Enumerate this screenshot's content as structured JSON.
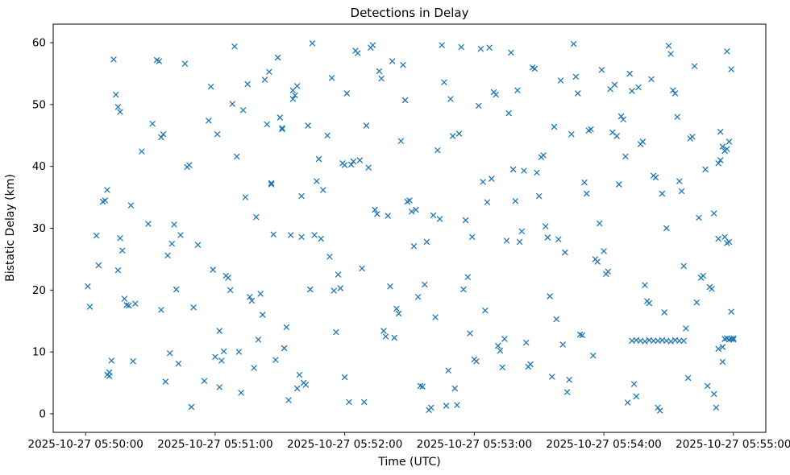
{
  "chart_data": {
    "type": "scatter",
    "title": "Detections in Delay",
    "xlabel": "Time (UTC)",
    "ylabel": "Bistatic Delay (km)",
    "marker": "x",
    "marker_color": "#1f77b4",
    "grid": false,
    "legend_position": "none",
    "xlim_seconds": [
      -15,
      315
    ],
    "ylim": [
      -3,
      63
    ],
    "x_ticks": [
      {
        "seconds": 0,
        "label": "2025-10-27 05:50:00"
      },
      {
        "seconds": 60,
        "label": "2025-10-27 05:51:00"
      },
      {
        "seconds": 120,
        "label": "2025-10-27 05:52:00"
      },
      {
        "seconds": 180,
        "label": "2025-10-27 05:53:00"
      },
      {
        "seconds": 240,
        "label": "2025-10-27 05:54:00"
      },
      {
        "seconds": 300,
        "label": "2025-10-27 05:55:00"
      }
    ],
    "y_ticks": [
      0,
      10,
      20,
      30,
      40,
      50,
      60
    ],
    "points_format": [
      "seconds_after_05:50:00_utc",
      "bistatic_delay_km"
    ],
    "points": [
      [
        1,
        20.6
      ],
      [
        2,
        17.3
      ],
      [
        5,
        28.8
      ],
      [
        6,
        24.0
      ],
      [
        8,
        34.3
      ],
      [
        9,
        34.5
      ],
      [
        10,
        36.2
      ],
      [
        10,
        6.3
      ],
      [
        11,
        6.7
      ],
      [
        11,
        6.1
      ],
      [
        12,
        8.6
      ],
      [
        13,
        57.3
      ],
      [
        14,
        51.6
      ],
      [
        15,
        49.6
      ],
      [
        16,
        48.8
      ],
      [
        15,
        23.2
      ],
      [
        16,
        28.4
      ],
      [
        17,
        26.4
      ],
      [
        18,
        18.6
      ],
      [
        19,
        17.6
      ],
      [
        20,
        17.5
      ],
      [
        21,
        33.7
      ],
      [
        22,
        8.5
      ],
      [
        23,
        17.8
      ],
      [
        26,
        42.4
      ],
      [
        29,
        30.7
      ],
      [
        31,
        46.9
      ],
      [
        33,
        57.2
      ],
      [
        34,
        57.0
      ],
      [
        35,
        44.7
      ],
      [
        36,
        45.2
      ],
      [
        35,
        16.8
      ],
      [
        37,
        5.2
      ],
      [
        38,
        25.6
      ],
      [
        39,
        9.8
      ],
      [
        40,
        27.5
      ],
      [
        41,
        30.6
      ],
      [
        42,
        20.1
      ],
      [
        43,
        8.1
      ],
      [
        44,
        28.9
      ],
      [
        46,
        56.6
      ],
      [
        47,
        39.9
      ],
      [
        48,
        40.2
      ],
      [
        49,
        1.1
      ],
      [
        50,
        17.2
      ],
      [
        52,
        27.3
      ],
      [
        55,
        5.3
      ],
      [
        57,
        47.4
      ],
      [
        58,
        52.9
      ],
      [
        59,
        23.3
      ],
      [
        60,
        9.2
      ],
      [
        61,
        45.2
      ],
      [
        62,
        13.4
      ],
      [
        62,
        4.3
      ],
      [
        63,
        8.6
      ],
      [
        64,
        10.1
      ],
      [
        65,
        22.3
      ],
      [
        66,
        22.0
      ],
      [
        67,
        20.0
      ],
      [
        68,
        50.1
      ],
      [
        69,
        59.4
      ],
      [
        70,
        41.6
      ],
      [
        71,
        10.0
      ],
      [
        72,
        3.4
      ],
      [
        73,
        49.1
      ],
      [
        74,
        35.0
      ],
      [
        75,
        53.3
      ],
      [
        76,
        18.9
      ],
      [
        77,
        18.3
      ],
      [
        78,
        7.4
      ],
      [
        79,
        31.8
      ],
      [
        80,
        12.0
      ],
      [
        81,
        19.4
      ],
      [
        82,
        16.0
      ],
      [
        83,
        54.0
      ],
      [
        84,
        46.8
      ],
      [
        85,
        55.3
      ],
      [
        86,
        37.1
      ],
      [
        86,
        37.3
      ],
      [
        87,
        29.0
      ],
      [
        88,
        8.7
      ],
      [
        89,
        57.6
      ],
      [
        90,
        47.9
      ],
      [
        91,
        46.2
      ],
      [
        91,
        46.0
      ],
      [
        92,
        10.6
      ],
      [
        93,
        14.0
      ],
      [
        94,
        2.2
      ],
      [
        95,
        28.9
      ],
      [
        96,
        50.9
      ],
      [
        96,
        52.3
      ],
      [
        97,
        51.5
      ],
      [
        98,
        53.0
      ],
      [
        98,
        4.1
      ],
      [
        99,
        6.3
      ],
      [
        100,
        35.2
      ],
      [
        100,
        28.6
      ],
      [
        101,
        5.0
      ],
      [
        102,
        4.7
      ],
      [
        103,
        46.6
      ],
      [
        104,
        20.1
      ],
      [
        105,
        59.9
      ],
      [
        106,
        28.9
      ],
      [
        107,
        37.6
      ],
      [
        108,
        41.2
      ],
      [
        109,
        28.3
      ],
      [
        110,
        36.2
      ],
      [
        112,
        45.0
      ],
      [
        113,
        25.4
      ],
      [
        114,
        54.3
      ],
      [
        115,
        19.9
      ],
      [
        116,
        13.2
      ],
      [
        117,
        22.5
      ],
      [
        118,
        20.3
      ],
      [
        119,
        40.5
      ],
      [
        120,
        40.2
      ],
      [
        120,
        5.9
      ],
      [
        121,
        51.8
      ],
      [
        122,
        1.9
      ],
      [
        123,
        40.3
      ],
      [
        124,
        40.8
      ],
      [
        125,
        58.7
      ],
      [
        126,
        58.3
      ],
      [
        127,
        41.0
      ],
      [
        128,
        23.5
      ],
      [
        129,
        1.9
      ],
      [
        130,
        46.6
      ],
      [
        131,
        39.8
      ],
      [
        132,
        59.2
      ],
      [
        133,
        59.6
      ],
      [
        134,
        33.0
      ],
      [
        135,
        32.3
      ],
      [
        136,
        55.4
      ],
      [
        137,
        54.2
      ],
      [
        138,
        13.4
      ],
      [
        139,
        12.5
      ],
      [
        140,
        32.0
      ],
      [
        141,
        20.6
      ],
      [
        142,
        57.0
      ],
      [
        143,
        12.3
      ],
      [
        144,
        17.0
      ],
      [
        145,
        16.2
      ],
      [
        146,
        44.1
      ],
      [
        147,
        56.4
      ],
      [
        148,
        50.7
      ],
      [
        149,
        34.3
      ],
      [
        150,
        34.5
      ],
      [
        151,
        32.7
      ],
      [
        152,
        27.1
      ],
      [
        153,
        33.0
      ],
      [
        154,
        18.9
      ],
      [
        155,
        4.5
      ],
      [
        156,
        4.4
      ],
      [
        157,
        20.9
      ],
      [
        158,
        27.8
      ],
      [
        159,
        0.6
      ],
      [
        160,
        1.0
      ],
      [
        161,
        32.1
      ],
      [
        162,
        15.6
      ],
      [
        163,
        42.6
      ],
      [
        164,
        31.5
      ],
      [
        165,
        59.6
      ],
      [
        166,
        53.6
      ],
      [
        167,
        1.3
      ],
      [
        168,
        7.0
      ],
      [
        169,
        50.9
      ],
      [
        170,
        44.9
      ],
      [
        171,
        4.1
      ],
      [
        172,
        1.4
      ],
      [
        173,
        45.3
      ],
      [
        174,
        59.3
      ],
      [
        175,
        20.1
      ],
      [
        176,
        31.3
      ],
      [
        177,
        22.1
      ],
      [
        178,
        13.0
      ],
      [
        179,
        28.6
      ],
      [
        180,
        8.8
      ],
      [
        181,
        8.5
      ],
      [
        182,
        49.8
      ],
      [
        183,
        59.0
      ],
      [
        184,
        37.5
      ],
      [
        185,
        16.7
      ],
      [
        186,
        34.2
      ],
      [
        187,
        59.2
      ],
      [
        188,
        38.0
      ],
      [
        189,
        52.0
      ],
      [
        190,
        51.6
      ],
      [
        191,
        11.0
      ],
      [
        192,
        10.2
      ],
      [
        193,
        7.5
      ],
      [
        194,
        12.1
      ],
      [
        195,
        28.0
      ],
      [
        196,
        48.6
      ],
      [
        197,
        58.4
      ],
      [
        198,
        39.5
      ],
      [
        199,
        34.4
      ],
      [
        200,
        52.3
      ],
      [
        201,
        27.8
      ],
      [
        202,
        29.5
      ],
      [
        203,
        39.3
      ],
      [
        204,
        11.5
      ],
      [
        205,
        7.6
      ],
      [
        206,
        8.0
      ],
      [
        207,
        56.0
      ],
      [
        208,
        55.8
      ],
      [
        209,
        39.0
      ],
      [
        210,
        35.2
      ],
      [
        211,
        41.5
      ],
      [
        212,
        41.8
      ],
      [
        213,
        30.3
      ],
      [
        214,
        28.5
      ],
      [
        215,
        19.0
      ],
      [
        216,
        6.0
      ],
      [
        217,
        46.4
      ],
      [
        218,
        15.3
      ],
      [
        219,
        28.2
      ],
      [
        220,
        53.9
      ],
      [
        221,
        11.2
      ],
      [
        222,
        26.1
      ],
      [
        223,
        3.5
      ],
      [
        224,
        5.5
      ],
      [
        225,
        45.2
      ],
      [
        226,
        59.8
      ],
      [
        227,
        54.5
      ],
      [
        228,
        51.8
      ],
      [
        229,
        12.8
      ],
      [
        230,
        12.7
      ],
      [
        231,
        37.4
      ],
      [
        232,
        35.6
      ],
      [
        233,
        45.8
      ],
      [
        234,
        46.0
      ],
      [
        235,
        9.4
      ],
      [
        236,
        25.0
      ],
      [
        237,
        24.6
      ],
      [
        238,
        30.8
      ],
      [
        239,
        55.6
      ],
      [
        240,
        26.3
      ],
      [
        241,
        22.6
      ],
      [
        242,
        23.0
      ],
      [
        243,
        52.5
      ],
      [
        244,
        45.5
      ],
      [
        245,
        53.2
      ],
      [
        246,
        44.9
      ],
      [
        247,
        37.1
      ],
      [
        248,
        48.1
      ],
      [
        249,
        47.6
      ],
      [
        250,
        41.6
      ],
      [
        251,
        1.8
      ],
      [
        252,
        55.0
      ],
      [
        253,
        52.2
      ],
      [
        254,
        4.8
      ],
      [
        255,
        2.8
      ],
      [
        256,
        52.8
      ],
      [
        257,
        43.6
      ],
      [
        258,
        44.0
      ],
      [
        259,
        20.8
      ],
      [
        260,
        18.2
      ],
      [
        261,
        17.9
      ],
      [
        262,
        54.1
      ],
      [
        263,
        38.5
      ],
      [
        264,
        38.2
      ],
      [
        265,
        1.0
      ],
      [
        266,
        0.5
      ],
      [
        267,
        35.6
      ],
      [
        268,
        16.4
      ],
      [
        269,
        30.0
      ],
      [
        270,
        59.5
      ],
      [
        253,
        11.8
      ],
      [
        255,
        11.9
      ],
      [
        257,
        11.8
      ],
      [
        259,
        11.7
      ],
      [
        261,
        11.9
      ],
      [
        263,
        11.8
      ],
      [
        265,
        11.8
      ],
      [
        267,
        11.9
      ],
      [
        269,
        11.8
      ],
      [
        271,
        11.7
      ],
      [
        273,
        11.9
      ],
      [
        275,
        11.8
      ],
      [
        277,
        11.8
      ],
      [
        271,
        58.2
      ],
      [
        272,
        52.3
      ],
      [
        273,
        51.8
      ],
      [
        274,
        48.0
      ],
      [
        275,
        37.6
      ],
      [
        276,
        36.0
      ],
      [
        277,
        23.9
      ],
      [
        278,
        13.8
      ],
      [
        279,
        5.8
      ],
      [
        280,
        44.5
      ],
      [
        281,
        44.8
      ],
      [
        282,
        56.2
      ],
      [
        283,
        18.0
      ],
      [
        284,
        31.7
      ],
      [
        285,
        22.0
      ],
      [
        286,
        22.3
      ],
      [
        287,
        39.5
      ],
      [
        288,
        4.5
      ],
      [
        289,
        20.5
      ],
      [
        290,
        20.2
      ],
      [
        291,
        3.2
      ],
      [
        292,
        1.0
      ],
      [
        293,
        40.5
      ],
      [
        294,
        41.0
      ],
      [
        295,
        8.4
      ],
      [
        297,
        27.6
      ],
      [
        298,
        27.8
      ],
      [
        299,
        16.5
      ],
      [
        296,
        12.1
      ],
      [
        297,
        12.2
      ],
      [
        298,
        12.0
      ],
      [
        299,
        12.1
      ],
      [
        300,
        12.2
      ],
      [
        300,
        12.0
      ],
      [
        297,
        58.6
      ],
      [
        299,
        55.7
      ],
      [
        294,
        45.6
      ],
      [
        295,
        43.2
      ],
      [
        296,
        42.5
      ],
      [
        297,
        42.8
      ],
      [
        298,
        44.0
      ],
      [
        293,
        28.3
      ],
      [
        296,
        28.6
      ],
      [
        291,
        32.4
      ],
      [
        293,
        10.5
      ],
      [
        295,
        10.8
      ]
    ]
  }
}
